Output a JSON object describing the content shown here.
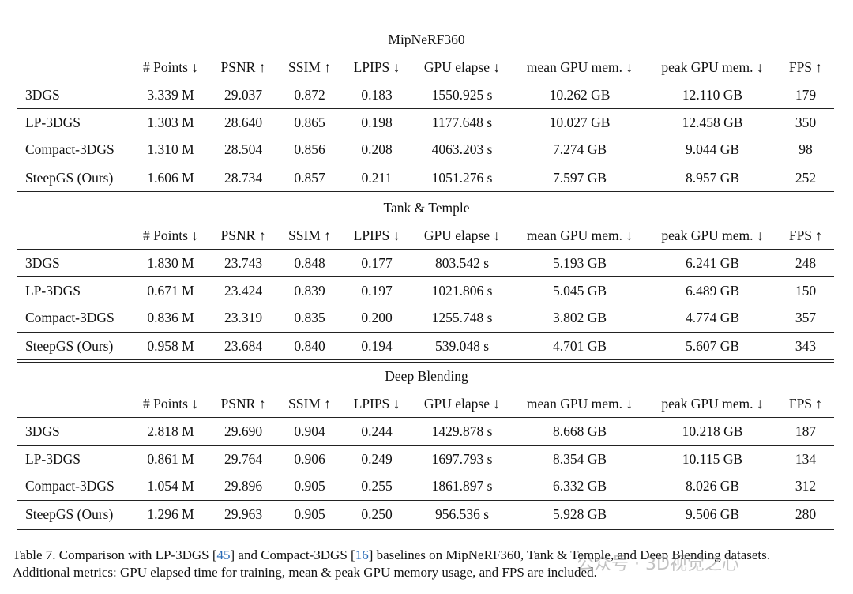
{
  "sections": [
    {
      "title": "MipNeRF360",
      "columns": [
        "# Points ↓",
        "PSNR ↑",
        "SSIM ↑",
        "LPIPS ↓",
        "GPU elapse ↓",
        "mean GPU mem. ↓",
        "peak GPU mem. ↓",
        "FPS ↑"
      ],
      "rows": [
        [
          "3DGS",
          "3.339 M",
          "29.037",
          "0.872",
          "0.183",
          "1550.925 s",
          "10.262 GB",
          "12.110 GB",
          "179"
        ],
        [
          "LP-3DGS",
          "1.303 M",
          "28.640",
          "0.865",
          "0.198",
          "1177.648 s",
          "10.027 GB",
          "12.458 GB",
          "350"
        ],
        [
          "Compact-3DGS",
          "1.310 M",
          "28.504",
          "0.856",
          "0.208",
          "4063.203 s",
          "7.274 GB",
          "9.044 GB",
          "98"
        ],
        [
          "SteepGS (Ours)",
          "1.606 M",
          "28.734",
          "0.857",
          "0.211",
          "1051.276 s",
          "7.597 GB",
          "8.957 GB",
          "252"
        ]
      ]
    },
    {
      "title": "Tank & Temple",
      "columns": [
        "# Points ↓",
        "PSNR ↑",
        "SSIM ↑",
        "LPIPS ↓",
        "GPU elapse ↓",
        "mean GPU mem. ↓",
        "peak GPU mem. ↓",
        "FPS ↑"
      ],
      "rows": [
        [
          "3DGS",
          "1.830 M",
          "23.743",
          "0.848",
          "0.177",
          "803.542 s",
          "5.193 GB",
          "6.241 GB",
          "248"
        ],
        [
          "LP-3DGS",
          "0.671 M",
          "23.424",
          "0.839",
          "0.197",
          "1021.806 s",
          "5.045 GB",
          "6.489 GB",
          "150"
        ],
        [
          "Compact-3DGS",
          "0.836 M",
          "23.319",
          "0.835",
          "0.200",
          "1255.748 s",
          "3.802 GB",
          "4.774 GB",
          "357"
        ],
        [
          "SteepGS (Ours)",
          "0.958 M",
          "23.684",
          "0.840",
          "0.194",
          "539.048 s",
          "4.701 GB",
          "5.607 GB",
          "343"
        ]
      ]
    },
    {
      "title": "Deep Blending",
      "columns": [
        "# Points ↓",
        "PSNR ↑",
        "SSIM ↑",
        "LPIPS ↓",
        "GPU elapse ↓",
        "mean GPU mem. ↓",
        "peak GPU mem. ↓",
        "FPS ↑"
      ],
      "rows": [
        [
          "3DGS",
          "2.818 M",
          "29.690",
          "0.904",
          "0.244",
          "1429.878 s",
          "8.668 GB",
          "10.218 GB",
          "187"
        ],
        [
          "LP-3DGS",
          "0.861 M",
          "29.764",
          "0.906",
          "0.249",
          "1697.793 s",
          "8.354 GB",
          "10.115 GB",
          "134"
        ],
        [
          "Compact-3DGS",
          "1.054 M",
          "29.896",
          "0.905",
          "0.255",
          "1861.897 s",
          "6.332 GB",
          "8.026 GB",
          "312"
        ],
        [
          "SteepGS (Ours)",
          "1.296 M",
          "29.963",
          "0.905",
          "0.250",
          "956.536 s",
          "5.928 GB",
          "9.506 GB",
          "280"
        ]
      ]
    }
  ],
  "caption": {
    "line1": [
      "Table 7. Comparison with LP-3DGS [",
      "45",
      "] and Compact-3DGS [",
      "16",
      "] baselines on MipNeRF360, Tank & Temple, and Deep Blending datasets."
    ],
    "line2": "Additional metrics: GPU elapsed time for training, mean & peak GPU memory usage, and FPS are included."
  },
  "watermark": "公众号 · 3D视觉之心"
}
